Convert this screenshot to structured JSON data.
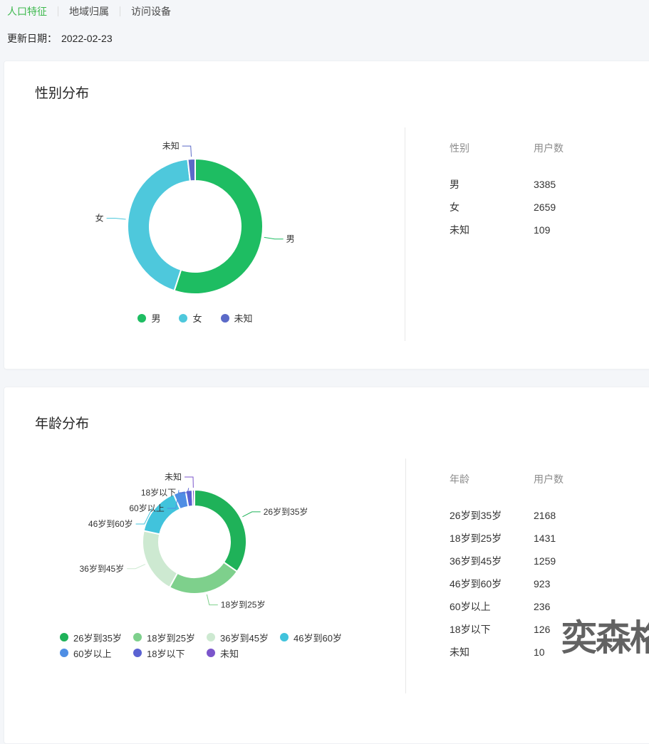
{
  "tabs": [
    {
      "label": "人口特征",
      "active": true
    },
    {
      "label": "地域归属",
      "active": false
    },
    {
      "label": "访问设备",
      "active": false
    }
  ],
  "update_date": {
    "label": "更新日期：",
    "value": "2022-02-23"
  },
  "watermark": "奕森格",
  "colors": {
    "accent_green": "#3eb94e",
    "page_bg": "#f4f6f9",
    "text_primary": "#262626",
    "text_secondary": "#8c8c8c",
    "divider": "#e8e8e8",
    "watermark": "#4d4d4d"
  },
  "cards": [
    {
      "title": "性别分布",
      "table": {
        "headers": [
          "性别",
          "用户数"
        ],
        "rows": [
          [
            "男",
            "3385"
          ],
          [
            "女",
            "2659"
          ],
          [
            "未知",
            "109"
          ]
        ]
      }
    },
    {
      "title": "年龄分布",
      "table": {
        "headers": [
          "年龄",
          "用户数"
        ],
        "rows": [
          [
            "26岁到35岁",
            "2168"
          ],
          [
            "18岁到25岁",
            "1431"
          ],
          [
            "36岁到45岁",
            "1259"
          ],
          [
            "46岁到60岁",
            "923"
          ],
          [
            "60岁以上",
            "236"
          ],
          [
            "18岁以下",
            "126"
          ],
          [
            "未知",
            "10"
          ]
        ]
      }
    }
  ],
  "chart_data": [
    {
      "type": "pie",
      "subtype": "donut",
      "title": "性别分布",
      "categories": [
        "男",
        "女",
        "未知"
      ],
      "values": [
        3385,
        2659,
        109
      ],
      "colors": [
        "#1ebd62",
        "#4ec8dc",
        "#5b6ac8"
      ],
      "legend": [
        "男",
        "女",
        "未知"
      ],
      "legend_position": "bottom-center",
      "labels_shown": true
    },
    {
      "type": "pie",
      "subtype": "donut",
      "title": "年龄分布",
      "categories": [
        "26岁到35岁",
        "18岁到25岁",
        "36岁到45岁",
        "46岁到60岁",
        "60岁以上",
        "18岁以下",
        "未知"
      ],
      "values": [
        2168,
        1431,
        1259,
        923,
        236,
        126,
        10
      ],
      "colors": [
        "#1fb259",
        "#7ed08c",
        "#cde9d1",
        "#41c3dc",
        "#4f8ee4",
        "#5a62d2",
        "#7b55cb"
      ],
      "legend": [
        "26岁到35岁",
        "18岁到25岁",
        "36岁到45岁",
        "46岁到60岁",
        "60岁以上",
        "18岁以下",
        "未知"
      ],
      "legend_position": "bottom-left-two-rows",
      "labels_shown": true
    }
  ]
}
